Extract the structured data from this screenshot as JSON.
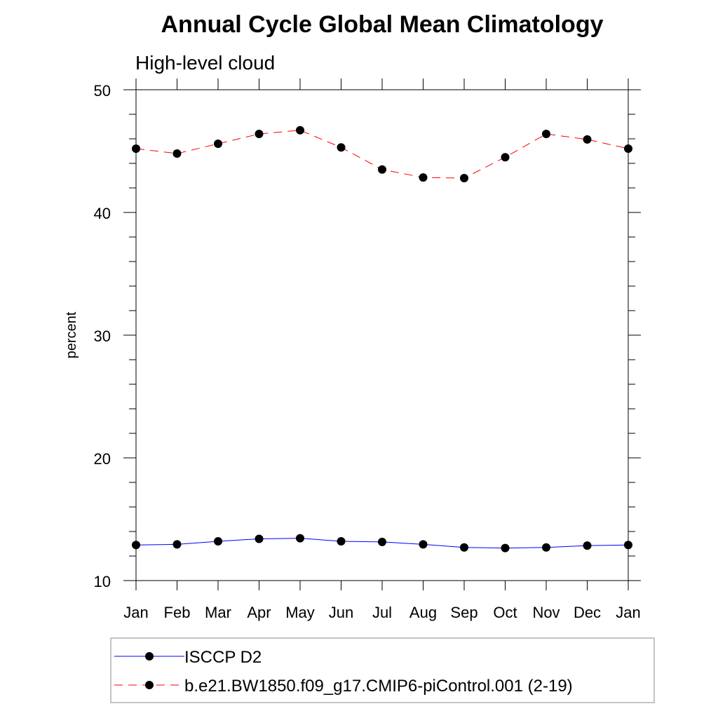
{
  "chart_data": {
    "type": "line",
    "title": "Annual Cycle Global Mean Climatology",
    "subtitle": "High-level cloud",
    "xlabel": "",
    "ylabel": "percent",
    "categories": [
      "Jan",
      "Feb",
      "Mar",
      "Apr",
      "May",
      "Jun",
      "Jul",
      "Aug",
      "Sep",
      "Oct",
      "Nov",
      "Dec",
      "Jan"
    ],
    "ylim": [
      10,
      50
    ],
    "yticks": [
      10,
      20,
      30,
      40,
      50
    ],
    "grid": false,
    "legend_position": "bottom",
    "series": [
      {
        "name": "ISCCP D2",
        "color": "#0000ff",
        "line_style": "solid",
        "marker": "circle",
        "values": [
          12.9,
          12.95,
          13.2,
          13.4,
          13.45,
          13.2,
          13.15,
          12.95,
          12.7,
          12.65,
          12.7,
          12.85,
          12.9
        ]
      },
      {
        "name": "b.e21.BW1850.f09_g17.CMIP6-piControl.001 (2-19)",
        "color": "#ff0000",
        "line_style": "dashed",
        "marker": "circle",
        "values": [
          45.2,
          44.8,
          45.6,
          46.4,
          46.7,
          45.3,
          43.5,
          42.85,
          42.8,
          44.5,
          46.4,
          45.95,
          45.2
        ]
      }
    ]
  }
}
